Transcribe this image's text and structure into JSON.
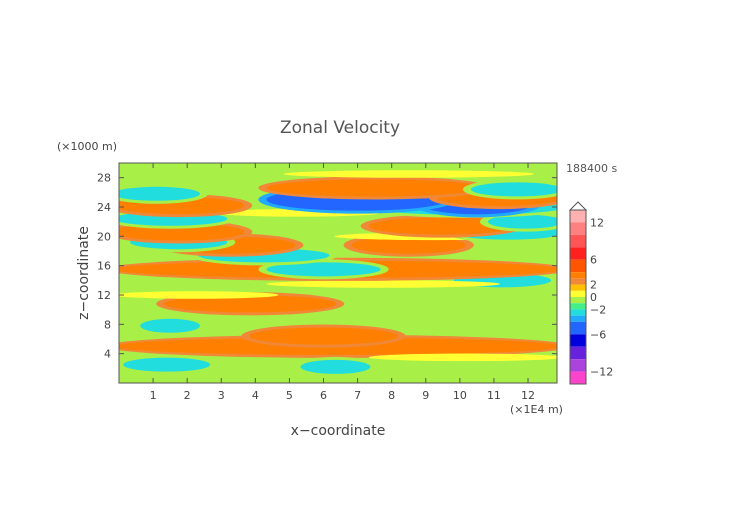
{
  "chart_data": {
    "type": "heatmap",
    "title": "Zonal Velocity",
    "xlabel": "x−coordinate",
    "ylabel": "z−coordinate",
    "x_unit": "(×1E4 m)",
    "y_unit": "(×1000 m)",
    "time_label": "188400 s",
    "xlim": [
      0,
      12.85
    ],
    "ylim": [
      0,
      30
    ],
    "x_ticks": [
      "1",
      "2",
      "3",
      "4",
      "5",
      "6",
      "7",
      "8",
      "9",
      "10",
      "11",
      "12"
    ],
    "y_ticks": [
      "4",
      "8",
      "12",
      "16",
      "20",
      "24",
      "28"
    ],
    "colorbar": {
      "ticks": [
        "12",
        "6",
        "2",
        "0",
        "−2",
        "−6",
        "−12"
      ],
      "levels": [
        {
          "min": 12,
          "max": 14,
          "color": "#ffb0b0"
        },
        {
          "min": 10,
          "max": 12,
          "color": "#ff8080"
        },
        {
          "min": 8,
          "max": 10,
          "color": "#ff5555"
        },
        {
          "min": 6,
          "max": 8,
          "color": "#ff2020"
        },
        {
          "min": 4,
          "max": 6,
          "color": "#ff5500"
        },
        {
          "min": 3,
          "max": 4,
          "color": "#ff8000"
        },
        {
          "min": 2,
          "max": 3,
          "color": "#f08838"
        },
        {
          "min": 1,
          "max": 2,
          "color": "#ffc000"
        },
        {
          "min": 0,
          "max": 1,
          "color": "#ffff33"
        },
        {
          "min": -1,
          "max": 0,
          "color": "#a8f048"
        },
        {
          "min": -2,
          "max": -1,
          "color": "#44ee88"
        },
        {
          "min": -3,
          "max": -2,
          "color": "#22dddd"
        },
        {
          "min": -4,
          "max": -3,
          "color": "#22aaff"
        },
        {
          "min": -6,
          "max": -4,
          "color": "#2266ff"
        },
        {
          "min": -8,
          "max": -6,
          "color": "#0000dd"
        },
        {
          "min": -10,
          "max": -8,
          "color": "#6622dd"
        },
        {
          "min": -12,
          "max": -10,
          "color": "#aa44dd"
        },
        {
          "min": -14,
          "max": -12,
          "color": "#ff44cc"
        }
      ]
    },
    "background_value": -0.5,
    "bands": [
      {
        "z": 5.0,
        "v": 3.5,
        "x": [
          0,
          12.85
        ]
      },
      {
        "z": 6.4,
        "v": 3.5,
        "x": [
          4.0,
          8.0
        ]
      },
      {
        "z": 2.5,
        "v": -2.5,
        "x": [
          0.3,
          2.5
        ]
      },
      {
        "z": 2.2,
        "v": -2.5,
        "x": [
          5.5,
          7.2
        ]
      },
      {
        "z": 7.8,
        "v": -2.5,
        "x": [
          0.8,
          2.2
        ]
      },
      {
        "z": 3.5,
        "v": 0.5,
        "x": [
          7.5,
          12.85
        ]
      },
      {
        "z": 10.8,
        "v": 3.5,
        "x": [
          1.5,
          6.2
        ]
      },
      {
        "z": 12.0,
        "v": 0.5,
        "x": [
          0,
          4.5
        ]
      },
      {
        "z": 14.0,
        "v": -2.5,
        "x": [
          10.0,
          12.5
        ]
      },
      {
        "z": 13.5,
        "v": 0.5,
        "x": [
          4.5,
          11.0
        ]
      },
      {
        "z": 15.5,
        "v": 3.5,
        "x": [
          0,
          12.85
        ]
      },
      {
        "z": 15.5,
        "v": -2.5,
        "x": [
          4.5,
          7.5
        ]
      },
      {
        "z": 17.4,
        "v": -2.5,
        "x": [
          2.5,
          6.0
        ]
      },
      {
        "z": 18.8,
        "v": 3.5,
        "x": [
          1.5,
          5.0
        ]
      },
      {
        "z": 18.8,
        "v": 3.5,
        "x": [
          7.0,
          10.0
        ]
      },
      {
        "z": 19.2,
        "v": -2.5,
        "x": [
          0.5,
          3.0
        ]
      },
      {
        "z": 20.0,
        "v": 0.5,
        "x": [
          6.5,
          12.0
        ]
      },
      {
        "z": 20.6,
        "v": 3.5,
        "x": [
          0,
          3.5
        ]
      },
      {
        "z": 20.5,
        "v": -2.5,
        "x": [
          10.0,
          12.85
        ]
      },
      {
        "z": 21.4,
        "v": 3.5,
        "x": [
          7.5,
          11.5
        ]
      },
      {
        "z": 22.0,
        "v": -2.5,
        "x": [
          11.0,
          12.85
        ]
      },
      {
        "z": 22.4,
        "v": -2.5,
        "x": [
          0,
          3.0
        ]
      },
      {
        "z": 23.2,
        "v": 0.5,
        "x": [
          3.0,
          7.5
        ]
      },
      {
        "z": 24.2,
        "v": 3.5,
        "x": [
          0,
          3.5
        ]
      },
      {
        "z": 23.9,
        "v": -2.5,
        "x": [
          7.5,
          12.85
        ]
      },
      {
        "z": 24.5,
        "v": -5.0,
        "x": [
          9.0,
          12.0
        ]
      },
      {
        "z": 25.0,
        "v": -5.0,
        "x": [
          4.5,
          9.5
        ]
      },
      {
        "z": 25.3,
        "v": 3.5,
        "x": [
          9.5,
          12.85
        ]
      },
      {
        "z": 25.8,
        "v": -2.5,
        "x": [
          0,
          2.2
        ]
      },
      {
        "z": 26.6,
        "v": 3.5,
        "x": [
          4.5,
          10.5
        ]
      },
      {
        "z": 26.4,
        "v": -2.5,
        "x": [
          10.5,
          12.85
        ]
      },
      {
        "z": 28.5,
        "v": 0.5,
        "x": [
          5.0,
          12.0
        ]
      }
    ]
  }
}
